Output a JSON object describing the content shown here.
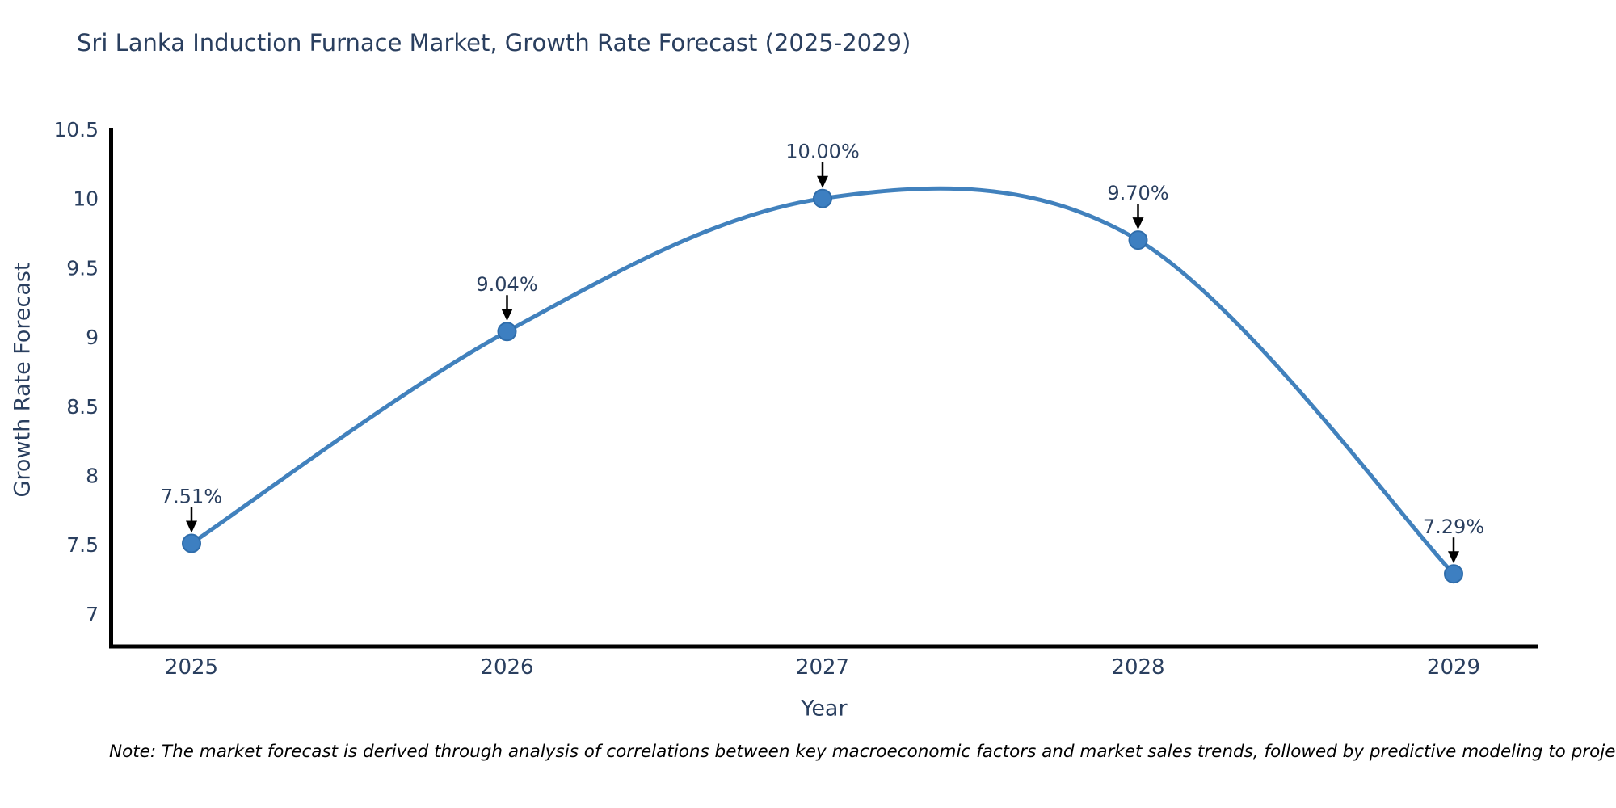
{
  "page": {
    "background": "#ffffff"
  },
  "note": "Note: The market forecast is derived through analysis of correlations between key macroeconomic factors and market sales trends, followed by predictive modeling to project future sal",
  "chart_data": {
    "type": "line",
    "title": "Sri Lanka Induction Furnace Market, Growth Rate Forecast (2025-2029)",
    "xlabel": "Year",
    "ylabel": "Growth Rate Forecast",
    "x": [
      2025,
      2026,
      2027,
      2028,
      2029
    ],
    "values": [
      7.51,
      9.04,
      10.0,
      9.7,
      7.29
    ],
    "point_labels": [
      "7.51%",
      "9.04%",
      "10.00%",
      "9.70%",
      "7.29%"
    ],
    "xticks": [
      "2025",
      "2026",
      "2027",
      "2028",
      "2029"
    ],
    "yticks": [
      10.5,
      10,
      9.5,
      9,
      8.5,
      8,
      7.5,
      7
    ],
    "ylim": [
      6.75,
      10.5
    ],
    "line_shape": "spline",
    "grid": false,
    "legend": "none",
    "colors": {
      "line": "#4181bd",
      "marker": "#3d7fc1",
      "marker_edge": "#2f6dab",
      "axis": "#000000",
      "text": "#2a3f5f",
      "annotation_arrow": "#000000",
      "note_text": "#000000"
    }
  }
}
